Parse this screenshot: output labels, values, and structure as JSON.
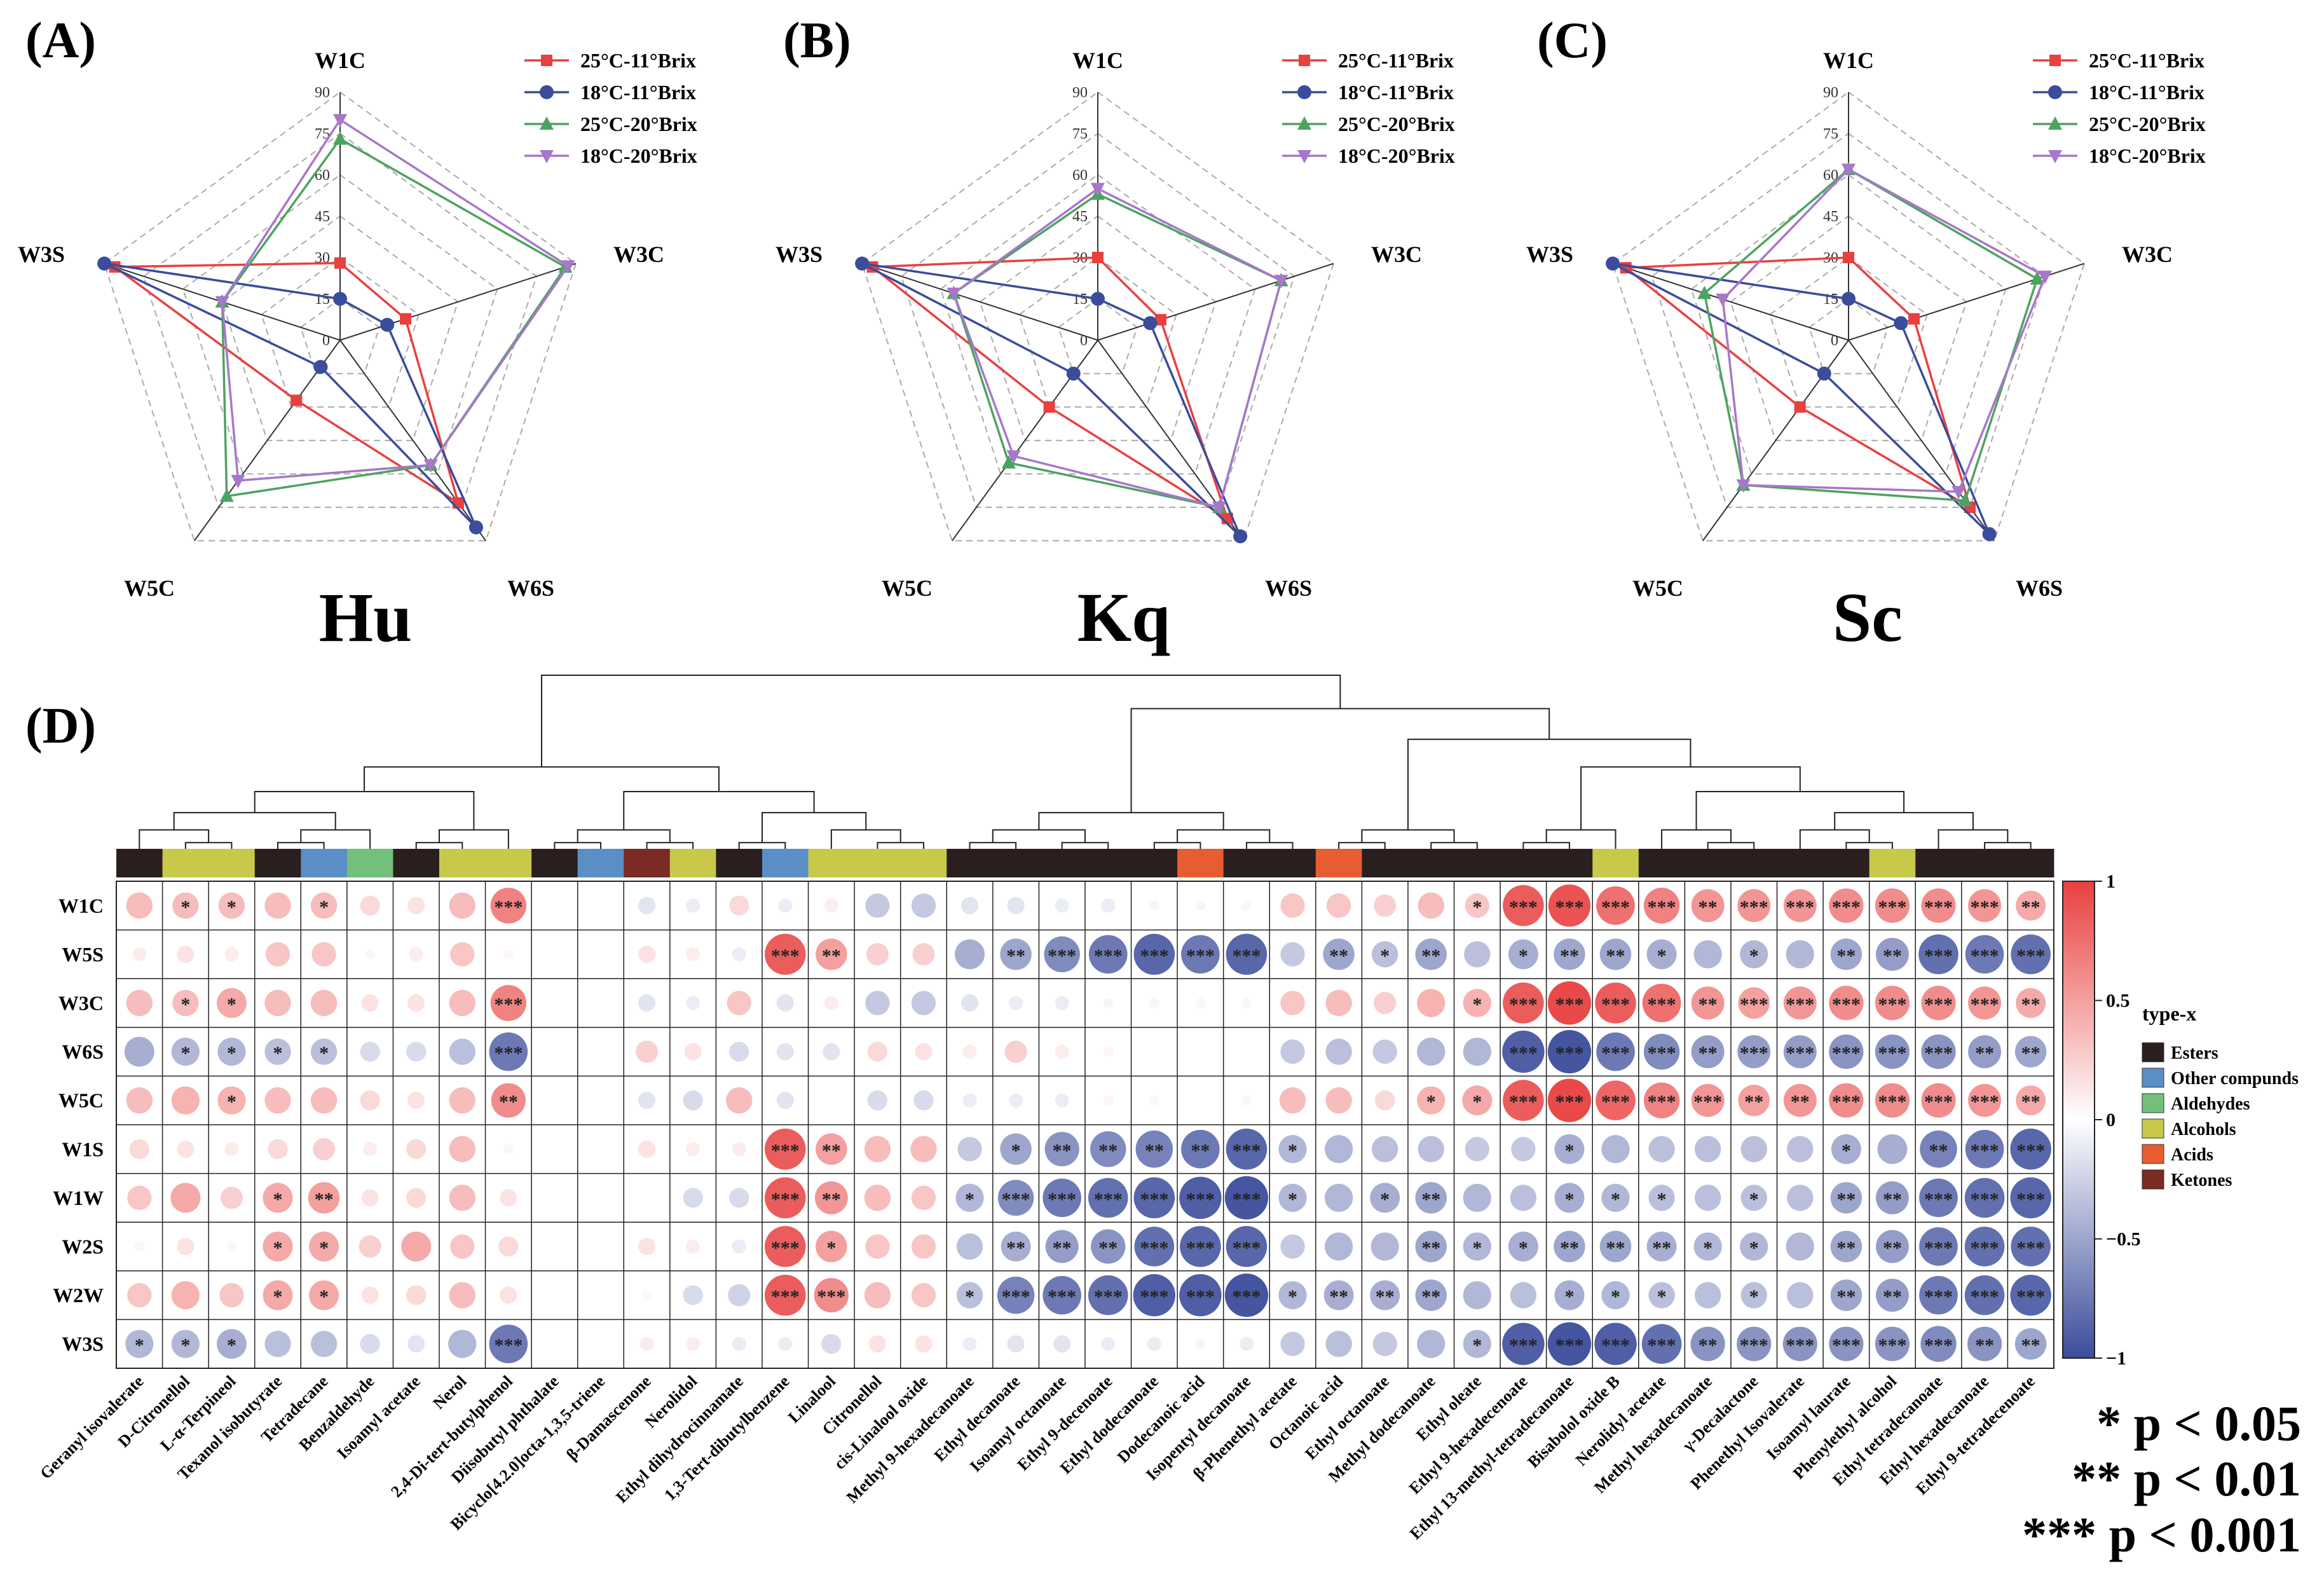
{
  "radar_panels": [
    {
      "panel": "(A)",
      "name": "Hu"
    },
    {
      "panel": "(B)",
      "name": "Kq"
    },
    {
      "panel": "(C)",
      "name": "Sc"
    }
  ],
  "heatmap_panel": "(D)",
  "legend_title": "type-x",
  "significance": [
    "* p < 0.05",
    "** p < 0.01",
    "*** p < 0.001"
  ],
  "colors": {
    "red": "#e8403f",
    "blue": "#3b4c9b",
    "green": "#4da360",
    "purple": "#a678c9",
    "Esters": "#2a1f1e",
    "Other compunds": "#5b8ec6",
    "Aldehydes": "#72c07a",
    "Alcohols": "#c8c84a",
    "Acids": "#e85c32",
    "Ketones": "#7b2a24"
  },
  "chart_data": [
    {
      "type": "radar",
      "title": "Hu",
      "axes": [
        "W1C",
        "W3C",
        "W6S",
        "W5C",
        "W3S"
      ],
      "ticks": [
        "0",
        "15",
        "30",
        "45",
        "60",
        "75",
        "90"
      ],
      "range": [
        0,
        90
      ],
      "series": [
        {
          "name": "25°C-11°Brix",
          "values": [
            28,
            25,
            73,
            27,
            86
          ]
        },
        {
          "name": "18°C-11°Brix",
          "values": [
            15,
            18,
            84,
            12,
            90
          ]
        },
        {
          "name": "25°C-20°Brix",
          "values": [
            73,
            86,
            56,
            70,
            45
          ]
        },
        {
          "name": "18°C-20°Brix",
          "values": [
            80,
            87,
            56,
            63,
            45
          ]
        }
      ]
    },
    {
      "type": "radar",
      "title": "Kq",
      "axes": [
        "W1C",
        "W3C",
        "W6S",
        "W5C",
        "W3S"
      ],
      "ticks": [
        "0",
        "15",
        "30",
        "45",
        "60",
        "75",
        "90"
      ],
      "range": [
        0,
        90
      ],
      "series": [
        {
          "name": "25°C-11°Brix",
          "values": [
            30,
            24,
            80,
            30,
            86
          ]
        },
        {
          "name": "18°C-11°Brix",
          "values": [
            15,
            20,
            88,
            15,
            90
          ]
        },
        {
          "name": "25°C-20°Brix",
          "values": [
            53,
            70,
            75,
            55,
            55
          ]
        },
        {
          "name": "18°C-20°Brix",
          "values": [
            55,
            70,
            75,
            52,
            55
          ]
        }
      ]
    },
    {
      "type": "radar",
      "title": "Sc",
      "axes": [
        "W1C",
        "W3C",
        "W6S",
        "W5C",
        "W3S"
      ],
      "ticks": [
        "0",
        "15",
        "30",
        "45",
        "60",
        "75",
        "90"
      ],
      "range": [
        0,
        90
      ],
      "series": [
        {
          "name": "25°C-11°Brix",
          "values": [
            30,
            25,
            75,
            30,
            85
          ]
        },
        {
          "name": "18°C-11°Brix",
          "values": [
            15,
            20,
            87,
            15,
            90
          ]
        },
        {
          "name": "25°C-20°Brix",
          "values": [
            62,
            72,
            72,
            65,
            55
          ]
        },
        {
          "name": "18°C-20°Brix",
          "values": [
            62,
            75,
            68,
            65,
            48
          ]
        }
      ]
    },
    {
      "type": "heatmap",
      "colorbar": {
        "range": [
          -1,
          1
        ],
        "ticks": [
          "1",
          "0.5",
          "0",
          "−0.5",
          "−1"
        ]
      },
      "rows": [
        "W1C",
        "W5S",
        "W3C",
        "W6S",
        "W5C",
        "W1S",
        "W1W",
        "W2S",
        "W2W",
        "W3S"
      ],
      "columns": [
        "Geranyl isovalerate",
        "D-Citronellol",
        "L-α-Terpineol",
        "Texanol isobutyrate",
        "Tetradecane",
        "Benzaldehyde",
        "Isoamyl acetate",
        "Nerol",
        "2,4-Di-tert-butylphenol",
        "Diisobutyl phthalate",
        "Bicyclo[4.2.0]octa-1,3,5-triene",
        "β-Damascenone",
        "Nerolidol",
        "Ethyl dihydrocinnamate",
        "1,3-Tert-dibutylbenzene",
        "Linalool",
        "Citronellol",
        "cis-Linalool oxide",
        "Methyl 9-hexadecanoate",
        "Ethyl decanoate",
        "Isoamyl octanoate",
        "Ethyl 9-decenoate",
        "Ethyl dodecanoate",
        "Dodecanoic acid",
        "Isopentyl decanoate",
        "β-Phenethyl acetate",
        "Octanoic acid",
        "Ethyl octanoate",
        "Methyl dodecanoate",
        "Ethyl oleate",
        "Ethyl 9-hexadecenoate",
        "Ethyl 13-methyl-tetradecanoate",
        "Bisabolol oxide B",
        "Nerolidyl acetate",
        "Methyl hexadecanoate",
        "γ-Decalactone",
        "Phenethyl Isovalerate",
        "Isoamyl laurate",
        "Phenylethyl alcohol",
        "Ethyl tetradecanoate",
        "Ethyl hexadecanoate",
        "Ethyl 9-tetradecenoate"
      ],
      "column_types": [
        "Esters",
        "Alcohols",
        "Alcohols",
        "Esters",
        "Other compunds",
        "Aldehydes",
        "Esters",
        "Alcohols",
        "Alcohols",
        "Esters",
        "Other compunds",
        "Ketones",
        "Alcohols",
        "Esters",
        "Other compunds",
        "Alcohols",
        "Alcohols",
        "Alcohols",
        "Esters",
        "Esters",
        "Esters",
        "Esters",
        "Esters",
        "Acids",
        "Esters",
        "Esters",
        "Acids",
        "Esters",
        "Esters",
        "Esters",
        "Esters",
        "Esters",
        "Alcohols",
        "Esters",
        "Esters",
        "Esters",
        "Esters",
        "Esters",
        "Alcohols",
        "Esters",
        "Esters",
        "Esters"
      ],
      "values": [
        [
          0.35,
          0.35,
          0.35,
          0.35,
          0.35,
          0.2,
          0.15,
          0.35,
          0.65,
          0,
          0,
          -0.15,
          -0.1,
          0.2,
          -0.1,
          0.1,
          -0.3,
          -0.3,
          -0.15,
          -0.15,
          -0.1,
          -0.1,
          -0.05,
          -0.05,
          0.05,
          0.3,
          0.3,
          0.25,
          0.35,
          0.3,
          0.85,
          0.9,
          0.75,
          0.65,
          0.55,
          0.55,
          0.55,
          0.6,
          0.6,
          0.6,
          0.55,
          0.45
        ],
        [
          0.1,
          0.15,
          0.1,
          0.3,
          0.3,
          0.05,
          0.1,
          0.3,
          0.05,
          0,
          0,
          0.15,
          0.1,
          -0.1,
          0.85,
          0.5,
          0.25,
          0.25,
          -0.45,
          -0.5,
          -0.65,
          -0.75,
          -0.85,
          -0.75,
          -0.85,
          -0.3,
          -0.5,
          -0.35,
          -0.5,
          -0.35,
          -0.45,
          -0.5,
          -0.5,
          -0.45,
          -0.4,
          -0.4,
          -0.4,
          -0.5,
          -0.55,
          -0.8,
          -0.75,
          -0.8
        ],
        [
          0.35,
          0.35,
          0.45,
          0.35,
          0.35,
          0.15,
          0.15,
          0.35,
          0.65,
          0,
          0,
          -0.15,
          -0.1,
          0.3,
          -0.15,
          0.1,
          -0.3,
          -0.3,
          -0.15,
          -0.1,
          -0.1,
          -0.05,
          -0.05,
          0.05,
          0.05,
          0.3,
          0.35,
          0.25,
          0.4,
          0.4,
          0.85,
          0.95,
          0.85,
          0.75,
          0.55,
          0.5,
          0.55,
          0.6,
          0.6,
          0.6,
          0.55,
          0.45
        ],
        [
          -0.45,
          -0.4,
          -0.4,
          -0.35,
          -0.35,
          -0.2,
          -0.2,
          -0.35,
          -0.75,
          0,
          0,
          0.25,
          0.15,
          -0.2,
          -0.15,
          -0.15,
          0.2,
          0.15,
          0.1,
          0.25,
          0.1,
          0.05,
          0,
          0,
          0,
          -0.3,
          -0.35,
          -0.3,
          -0.4,
          -0.4,
          -0.9,
          -0.95,
          -0.75,
          -0.65,
          -0.55,
          -0.55,
          -0.55,
          -0.6,
          -0.6,
          -0.6,
          -0.55,
          -0.5
        ],
        [
          0.35,
          0.4,
          0.4,
          0.35,
          0.35,
          0.2,
          0.15,
          0.35,
          0.6,
          0,
          0,
          -0.15,
          -0.2,
          0.35,
          -0.15,
          0,
          -0.2,
          -0.2,
          -0.1,
          -0.1,
          -0.1,
          0.05,
          0.05,
          0,
          0.05,
          0.35,
          0.35,
          0.2,
          0.4,
          0.45,
          0.85,
          0.95,
          0.8,
          0.65,
          0.55,
          0.5,
          0.55,
          0.6,
          0.6,
          0.6,
          0.55,
          0.45
        ],
        [
          0.2,
          0.15,
          0.1,
          0.2,
          0.25,
          0.1,
          0.2,
          0.35,
          0.05,
          0,
          0,
          0.15,
          0.1,
          0.1,
          0.85,
          0.5,
          0.35,
          0.35,
          -0.3,
          -0.5,
          -0.6,
          -0.65,
          -0.7,
          -0.75,
          -0.85,
          -0.4,
          -0.4,
          -0.35,
          -0.35,
          -0.3,
          -0.3,
          -0.45,
          -0.4,
          -0.35,
          -0.35,
          -0.35,
          -0.35,
          -0.45,
          -0.45,
          -0.7,
          -0.75,
          -0.85
        ],
        [
          0.3,
          0.45,
          0.25,
          0.45,
          0.5,
          0.15,
          0.2,
          0.35,
          0.15,
          0,
          0,
          0,
          -0.2,
          -0.2,
          0.85,
          0.55,
          0.35,
          0.3,
          -0.4,
          -0.65,
          -0.75,
          -0.8,
          -0.85,
          -0.9,
          -0.95,
          -0.4,
          -0.4,
          -0.45,
          -0.5,
          -0.4,
          -0.35,
          -0.45,
          -0.4,
          -0.35,
          -0.35,
          -0.35,
          -0.35,
          -0.5,
          -0.55,
          -0.75,
          -0.8,
          -0.85
        ],
        [
          0.05,
          0.15,
          0.05,
          0.45,
          0.45,
          0.25,
          0.45,
          0.3,
          0.2,
          0,
          0,
          0.15,
          0.1,
          -0.1,
          0.85,
          0.5,
          0.3,
          0.3,
          -0.35,
          -0.45,
          -0.55,
          -0.6,
          -0.8,
          -0.85,
          -0.85,
          -0.3,
          -0.4,
          -0.4,
          -0.5,
          -0.4,
          -0.45,
          -0.5,
          -0.5,
          -0.45,
          -0.4,
          -0.4,
          -0.4,
          -0.5,
          -0.55,
          -0.75,
          -0.8,
          -0.8
        ],
        [
          0.3,
          0.4,
          0.3,
          0.45,
          0.45,
          0.15,
          0.2,
          0.35,
          0.15,
          0,
          0,
          0.05,
          -0.2,
          -0.25,
          0.85,
          0.6,
          0.35,
          0.3,
          -0.35,
          -0.7,
          -0.75,
          -0.8,
          -0.9,
          -0.9,
          -0.95,
          -0.4,
          -0.45,
          -0.45,
          -0.5,
          -0.4,
          -0.35,
          -0.45,
          -0.4,
          -0.35,
          -0.35,
          -0.35,
          -0.35,
          -0.5,
          -0.55,
          -0.75,
          -0.8,
          -0.85
        ],
        [
          -0.4,
          -0.4,
          -0.45,
          -0.35,
          -0.35,
          -0.2,
          -0.15,
          -0.4,
          -0.75,
          0,
          0,
          0.1,
          0.1,
          -0.1,
          -0.1,
          -0.2,
          0.15,
          0.15,
          -0.1,
          -0.15,
          -0.15,
          -0.1,
          -0.1,
          -0.05,
          -0.1,
          -0.3,
          -0.35,
          -0.3,
          -0.4,
          -0.4,
          -0.9,
          -0.95,
          -0.9,
          -0.8,
          -0.6,
          -0.6,
          -0.6,
          -0.6,
          -0.6,
          -0.65,
          -0.6,
          -0.5
        ]
      ],
      "stars": [
        [
          "",
          "*",
          "*",
          "",
          "*",
          "",
          "",
          "",
          "***",
          "",
          "",
          "",
          "",
          "",
          "",
          "",
          "",
          "",
          "",
          "",
          "",
          "",
          "",
          "",
          "",
          "",
          "",
          "",
          "",
          "*",
          "***",
          "***",
          "***",
          "***",
          "**",
          "***",
          "***",
          "***",
          "***",
          "***",
          "***",
          "**"
        ],
        [
          "",
          "",
          "",
          "",
          "",
          "",
          "",
          "",
          "",
          "",
          "",
          "",
          "",
          "",
          "***",
          "**",
          "",
          "",
          "",
          "**",
          "***",
          "***",
          "***",
          "***",
          "***",
          "",
          "**",
          "*",
          "**",
          "",
          "*",
          "**",
          "**",
          "*",
          "",
          "*",
          "",
          "**",
          "**",
          "***",
          "***",
          "***"
        ],
        [
          "",
          "*",
          "*",
          "",
          "",
          "",
          "",
          "",
          "***",
          "",
          "",
          "",
          "",
          "",
          "",
          "",
          "",
          "",
          "",
          "",
          "",
          "",
          "",
          "",
          "",
          "",
          "",
          "",
          "",
          "*",
          "***",
          "***",
          "***",
          "***",
          "**",
          "***",
          "***",
          "***",
          "***",
          "***",
          "***",
          "**"
        ],
        [
          "",
          "*",
          "*",
          "*",
          "*",
          "",
          "",
          "",
          "***",
          "",
          "",
          "",
          "",
          "",
          "",
          "",
          "",
          "",
          "",
          "",
          "",
          "",
          "",
          "",
          "",
          "",
          "",
          "",
          "",
          "",
          "***",
          "***",
          "***",
          "***",
          "**",
          "***",
          "***",
          "***",
          "***",
          "***",
          "**",
          "**"
        ],
        [
          "",
          "",
          "*",
          "",
          "",
          "",
          "",
          "",
          "**",
          "",
          "",
          "",
          "",
          "",
          "",
          "",
          "",
          "",
          "",
          "",
          "",
          "",
          "",
          "",
          "",
          "",
          "",
          "",
          "*",
          "*",
          "***",
          "***",
          "***",
          "***",
          "***",
          "**",
          "**",
          "***",
          "***",
          "***",
          "***",
          "**"
        ],
        [
          "",
          "",
          "",
          "",
          "",
          "",
          "",
          "",
          "",
          "",
          "",
          "",
          "",
          "",
          "***",
          "**",
          "",
          "",
          "",
          "*",
          "**",
          "**",
          "**",
          "**",
          "***",
          "*",
          "",
          "",
          "",
          "",
          "",
          "*",
          "",
          "",
          "",
          "",
          "",
          "*",
          "",
          "**",
          "***",
          "***"
        ],
        [
          "",
          "",
          "",
          "*",
          "**",
          "",
          "",
          "",
          "",
          "",
          "",
          "",
          "",
          "",
          "***",
          "**",
          "",
          "",
          "*",
          "***",
          "***",
          "***",
          "***",
          "***",
          "***",
          "*",
          "",
          "*",
          "**",
          "",
          "",
          "*",
          "*",
          "*",
          "",
          "*",
          "",
          "**",
          "**",
          "***",
          "***",
          "***"
        ],
        [
          "",
          "",
          "",
          "*",
          "*",
          "",
          "",
          "",
          "",
          "",
          "",
          "",
          "",
          "",
          "***",
          "*",
          "",
          "",
          "",
          "**",
          "**",
          "**",
          "***",
          "***",
          "***",
          "",
          "",
          "",
          "**",
          "*",
          "*",
          "**",
          "**",
          "**",
          "*",
          "*",
          "",
          "**",
          "**",
          "***",
          "***",
          "***"
        ],
        [
          "",
          "",
          "",
          "*",
          "*",
          "",
          "",
          "",
          "",
          "",
          "",
          "",
          "",
          "",
          "***",
          "***",
          "",
          "",
          "*",
          "***",
          "***",
          "***",
          "***",
          "***",
          "***",
          "*",
          "**",
          "**",
          "**",
          "",
          "",
          "*",
          "*",
          "*",
          "",
          "*",
          "",
          "**",
          "**",
          "***",
          "***",
          "***"
        ],
        [
          "*",
          "*",
          "*",
          "",
          "",
          "",
          "",
          "",
          "***",
          "",
          "",
          "",
          "",
          "",
          "",
          "",
          "",
          "",
          "",
          "",
          "",
          "",
          "",
          "",
          "",
          "",
          "",
          "",
          "",
          "*",
          "***",
          "***",
          "***",
          "***",
          "**",
          "***",
          "***",
          "***",
          "***",
          "***",
          "**",
          "**"
        ]
      ]
    }
  ]
}
